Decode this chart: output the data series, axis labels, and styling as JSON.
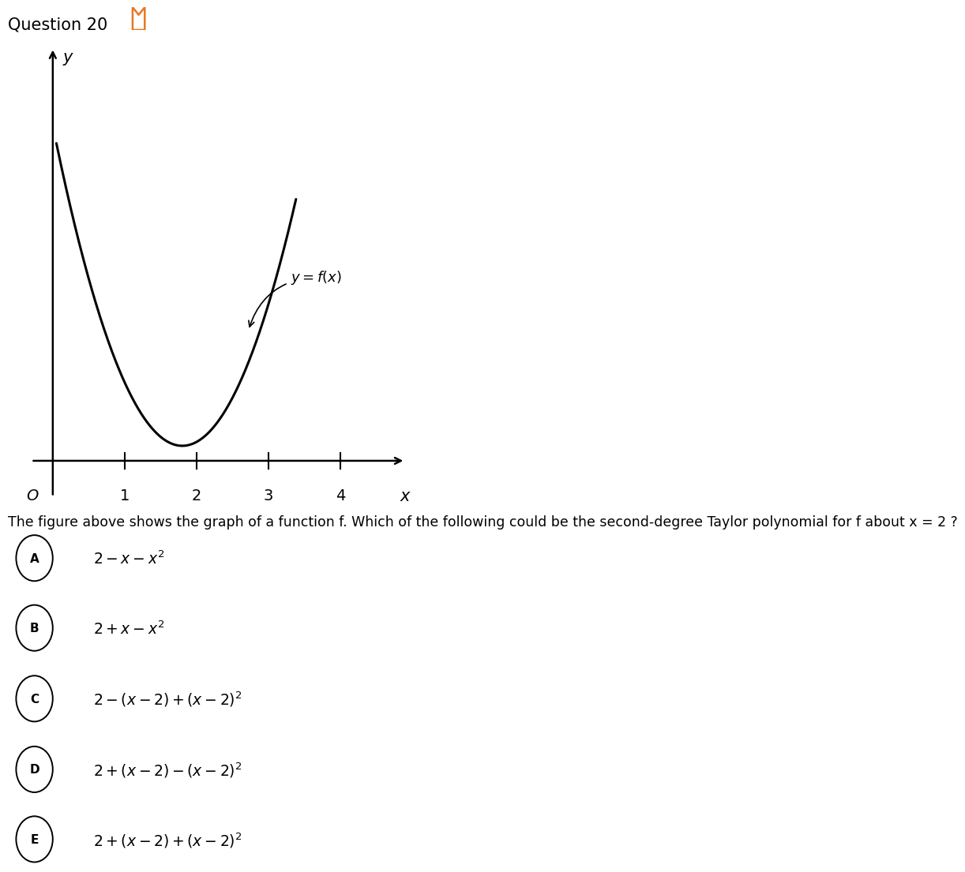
{
  "title": "Question 20",
  "title_fontsize": 15,
  "bookmark_color": "#E87722",
  "question_text": "The figure above shows the graph of a function f. Which of the following could be the second-degree Taylor polynomial for f about x = 2 ?",
  "question_fontsize": 12.5,
  "choices": [
    {
      "label": "A",
      "formula": "$2 - x - x^2$"
    },
    {
      "label": "B",
      "formula": "$2 + x - x^2$"
    },
    {
      "label": "C",
      "formula": "$2 - (x - 2) + (x - 2)^2$"
    },
    {
      "label": "D",
      "formula": "$2 + (x - 2) - (x - 2)^2$"
    },
    {
      "label": "E",
      "formula": "$2 + (x - 2) + (x - 2)^2$"
    }
  ],
  "choice_fontsize": 13.5,
  "graph_xlim": [
    -0.4,
    5.0
  ],
  "graph_ylim": [
    -0.8,
    7.0
  ],
  "graph_xticks": [
    1,
    2,
    3,
    4
  ],
  "curve_color": "#000000",
  "axis_color": "#000000",
  "bg_color": "#ffffff",
  "label_y": "$y$",
  "label_x": "$x$",
  "label_origin": "$O$",
  "label_fx": "$y = f(x)$"
}
